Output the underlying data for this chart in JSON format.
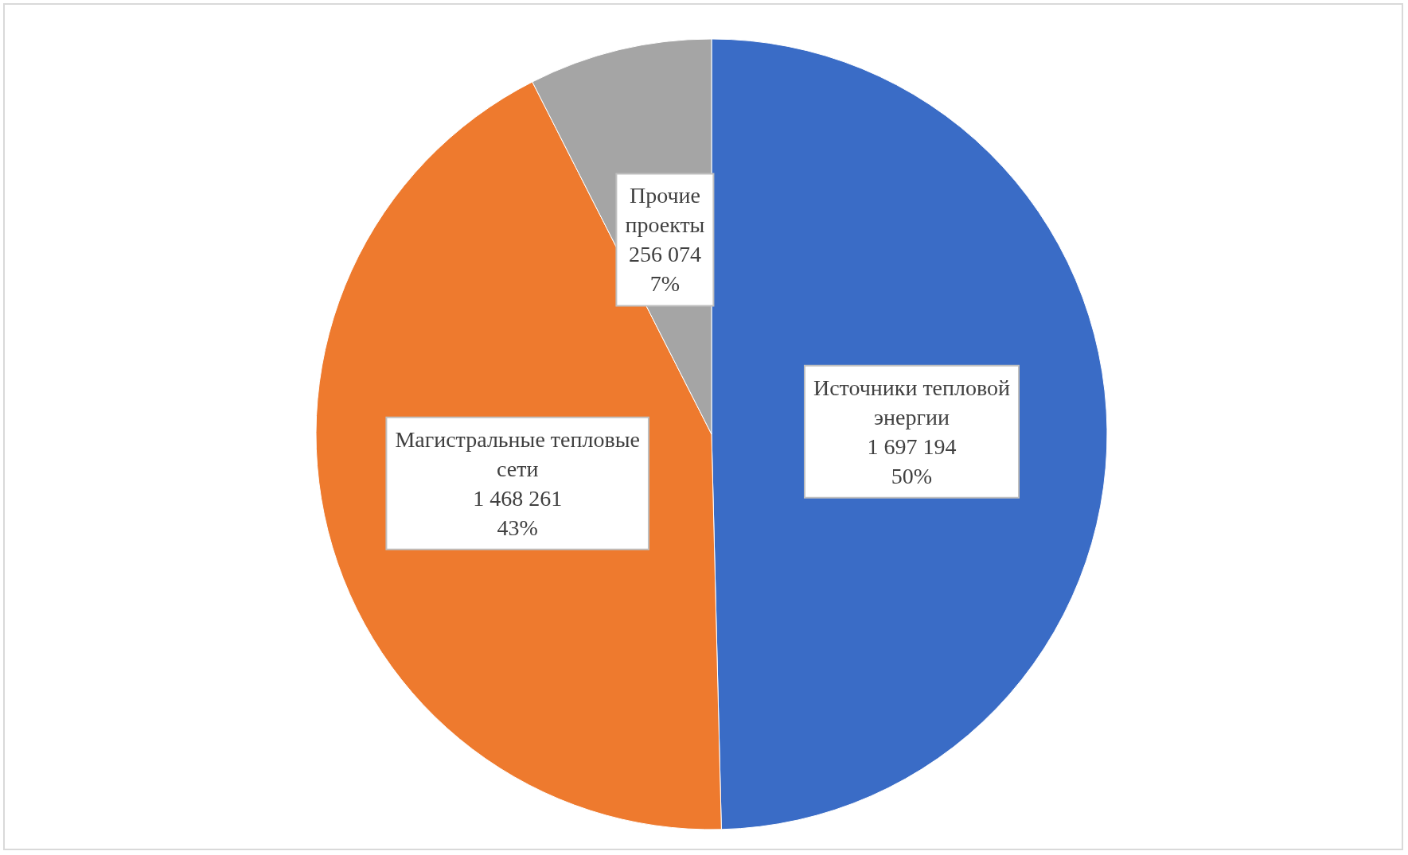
{
  "chart_data": {
    "type": "pie",
    "categories": [
      "Источники тепловой энергии",
      "Магистральные тепловые сети",
      "Прочие проекты"
    ],
    "values": [
      1697194,
      1468261,
      256074
    ],
    "value_labels": [
      "1 697 194\n50%",
      "1 468 261\n43%",
      "256 074\n7%"
    ],
    "colors": [
      "#3a6cc6",
      "#ee7a2e",
      "#a5a5a5"
    ],
    "legend": false
  }
}
